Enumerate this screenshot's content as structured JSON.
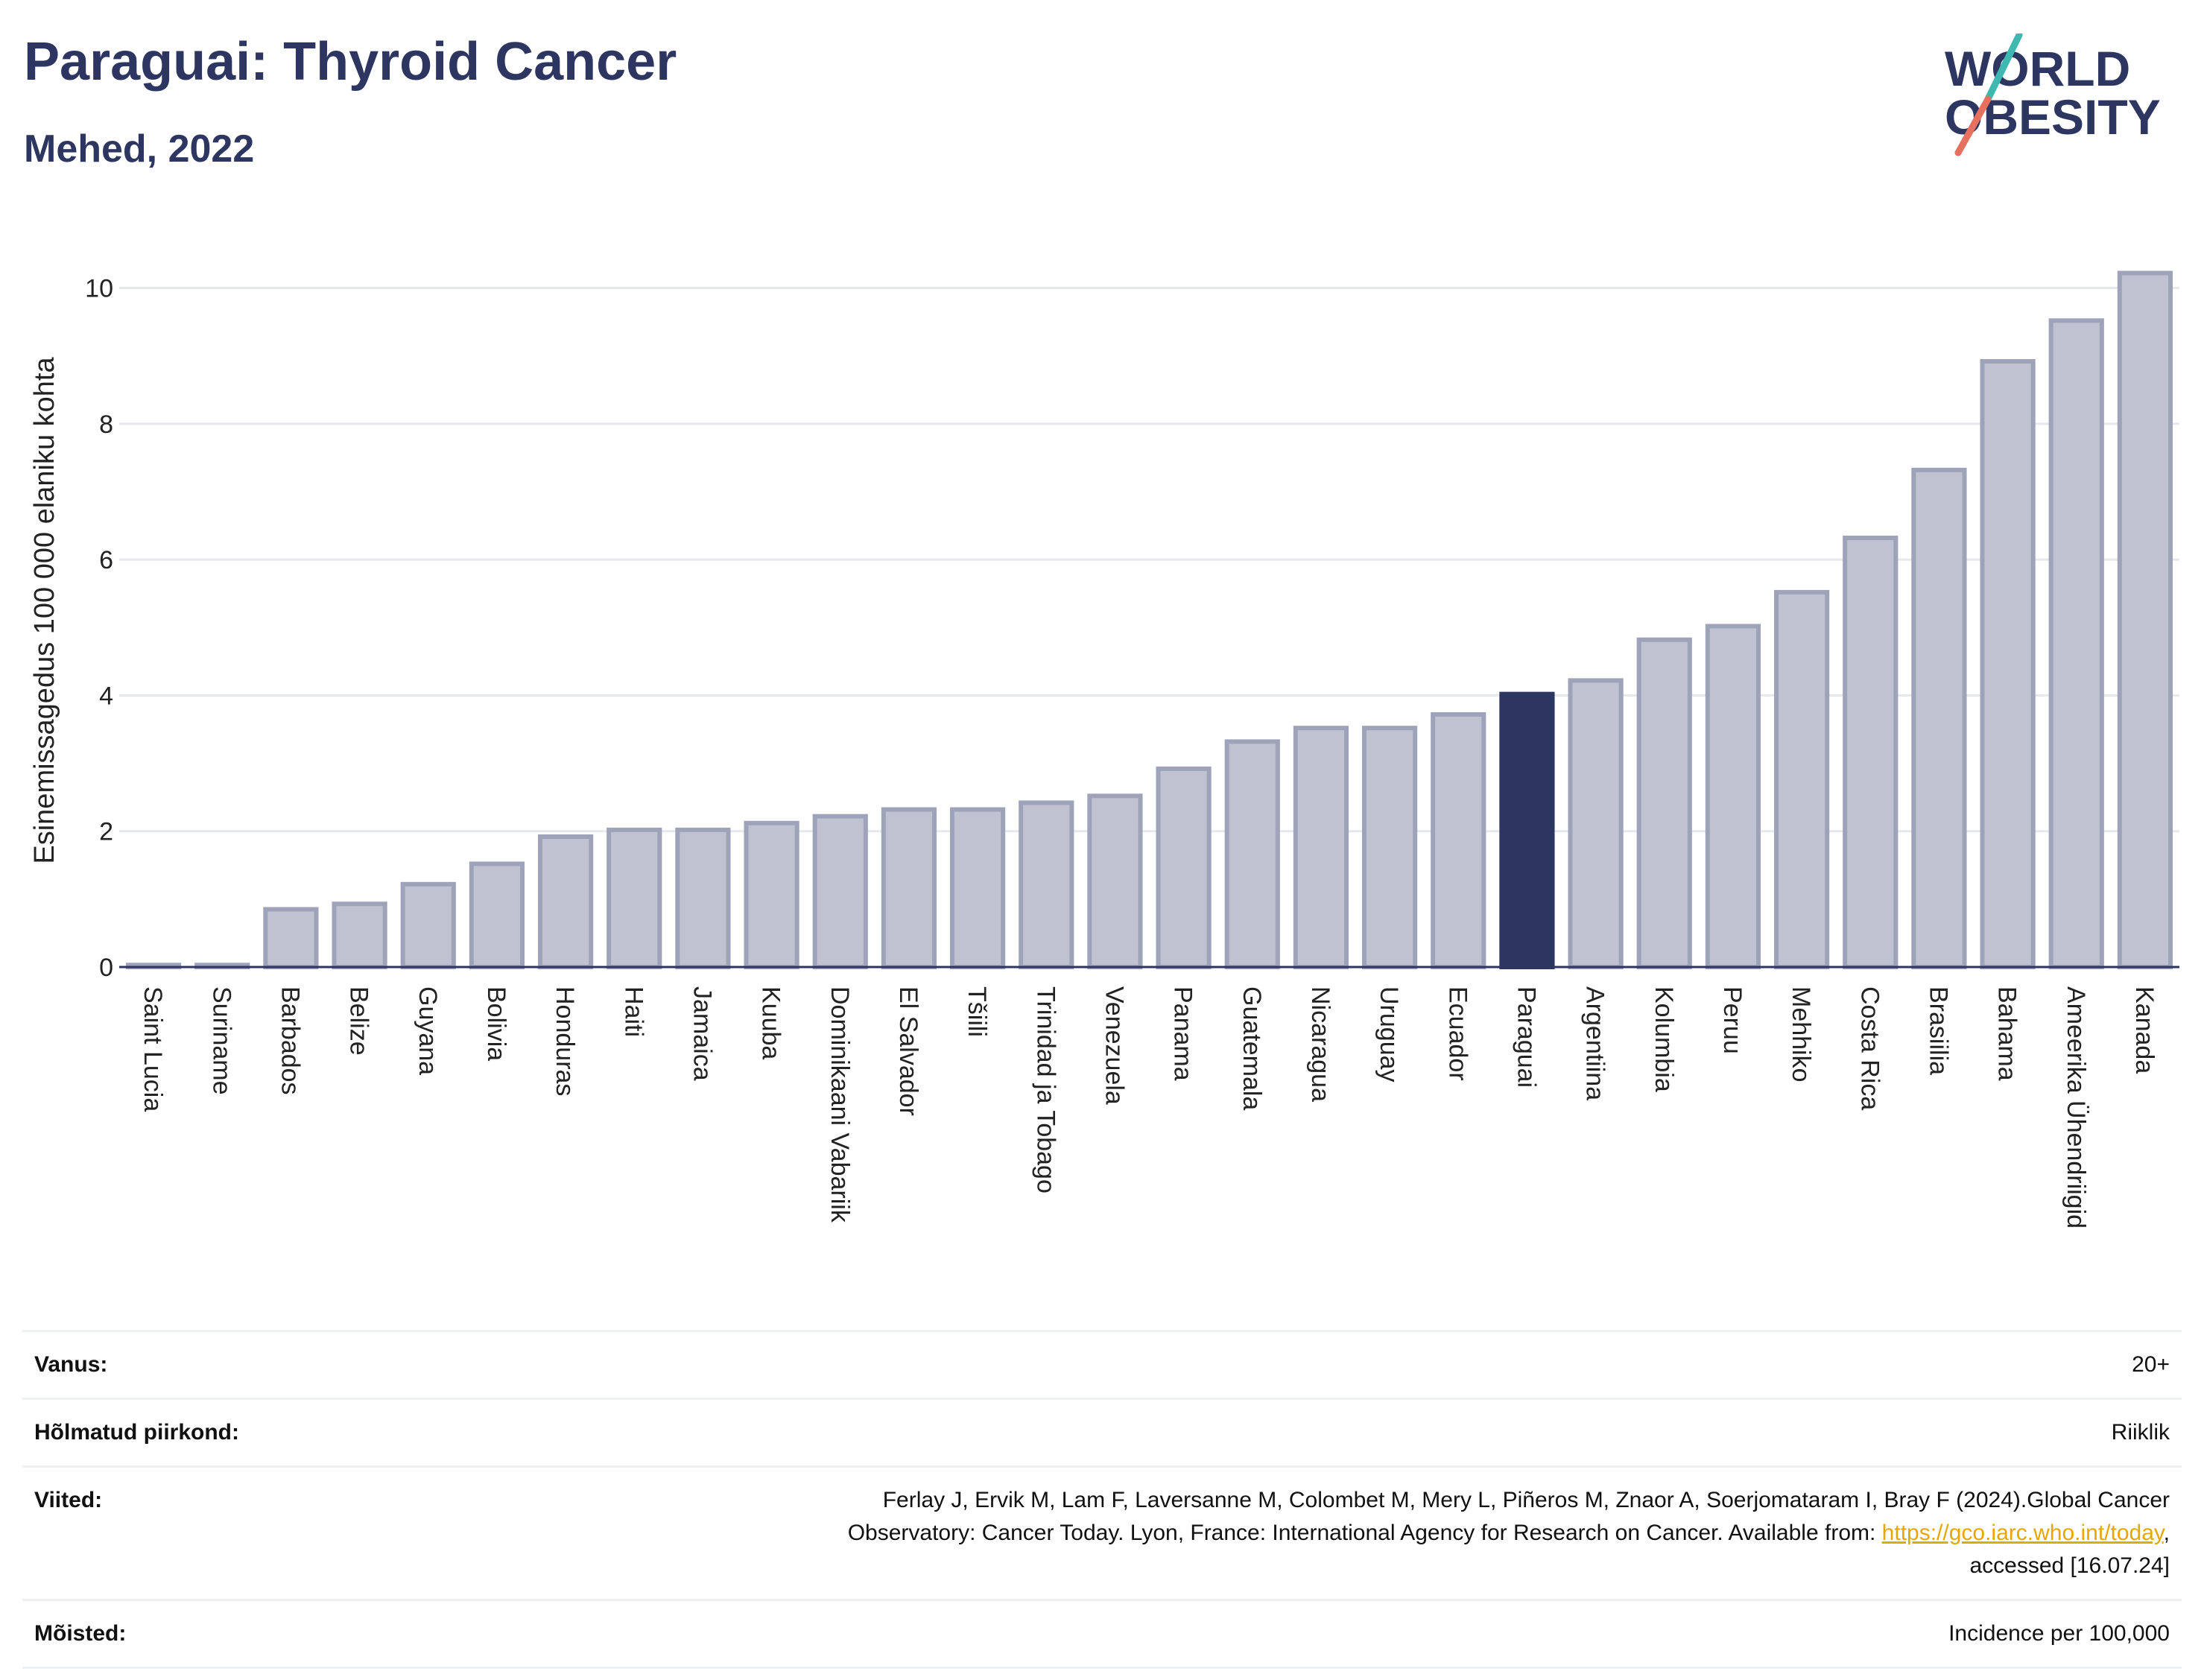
{
  "header": {
    "title": "Paraguai: Thyroid Cancer",
    "subtitle": "Mehed, 2022"
  },
  "logo": {
    "line1": "WORLD",
    "line2": "OBESITY"
  },
  "colors": {
    "highlight": "#2d3561",
    "bar_fill": "#bfc3d1",
    "bar_stroke": "#9ea3ba",
    "grid": "#e6e8ee",
    "logo_slash_teal": "#3fb8b0",
    "logo_slash_red": "#e8705f",
    "link": "#e7a700"
  },
  "chart_data": {
    "type": "bar",
    "ylabel": "Esinemissagedus 100 000 elaniku kohta",
    "ylim": [
      0,
      10.5
    ],
    "yticks": [
      0,
      2,
      4,
      6,
      8,
      10
    ],
    "grid": true,
    "highlight": "Paraguai",
    "categories": [
      "Saint Lucia",
      "Suriname",
      "Barbados",
      "Belize",
      "Guyana",
      "Bolivia",
      "Honduras",
      "Haiti",
      "Jamaica",
      "Kuuba",
      "Dominikaani Vabariik",
      "El Salvador",
      "Tšiili",
      "Trinidad ja Tobago",
      "Venezuela",
      "Panama",
      "Guatemala",
      "Nicaragua",
      "Uruguay",
      "Ecuador",
      "Paraguai",
      "Argentiina",
      "Kolumbia",
      "Peruu",
      "Mehhiko",
      "Costa Rica",
      "Brasiilia",
      "Bahama",
      "Ameerika Ühendriigid",
      "Kanada"
    ],
    "values": [
      0.03,
      0.03,
      0.85,
      0.93,
      1.22,
      1.52,
      1.92,
      2.02,
      2.02,
      2.12,
      2.22,
      2.32,
      2.32,
      2.42,
      2.52,
      2.92,
      3.32,
      3.52,
      3.52,
      3.72,
      4.02,
      4.22,
      4.82,
      5.02,
      5.52,
      6.32,
      7.32,
      8.92,
      9.52,
      10.22
    ]
  },
  "info": {
    "age_label": "Vanus:",
    "age_value": "20+",
    "region_label": "Hõlmatud piirkond:",
    "region_value": "Riiklik",
    "refs_label": "Viited:",
    "refs_text_line1": "Ferlay J, Ervik M, Lam F, Laversanne M, Colombet M, Mery L, Piñeros M, Znaor A, Soerjomataram I, Bray F (2024).Global Cancer",
    "refs_text_line2": "Observatory: Cancer Today. Lyon, France: International Agency for Research on Cancer. Available from: ",
    "refs_link": "https://gco.iarc.who.int/today",
    "refs_text_line3": "accessed [16.07.24]",
    "definitions_label": "Mõisted:",
    "definitions_value": "Incidence per 100,000"
  }
}
